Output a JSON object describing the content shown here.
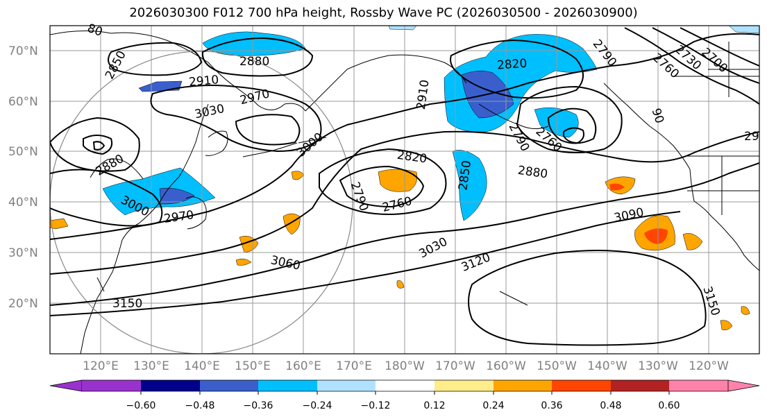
{
  "title": "2026030300 F012 700 hPa height, Rossby Wave PC (2026030500 - 2026030900)",
  "map": {
    "lat_labels": [
      "70°N",
      "60°N",
      "50°N",
      "40°N",
      "30°N",
      "20°N"
    ],
    "lon_labels": [
      "120°E",
      "130°E",
      "140°E",
      "150°E",
      "160°E",
      "170°E",
      "180°W",
      "170°W",
      "160°W",
      "150°W",
      "140°W",
      "130°W",
      "120°W"
    ],
    "contour_labels": [
      {
        "text": "2880",
        "color": "#000"
      },
      {
        "text": "2850",
        "color": "#000"
      },
      {
        "text": "2910",
        "color": "#000"
      },
      {
        "text": "2970",
        "color": "#000"
      },
      {
        "text": "3030",
        "color": "#000"
      },
      {
        "text": "3000",
        "color": "#000"
      },
      {
        "text": "2880",
        "color": "#000"
      },
      {
        "text": "3000",
        "color": "#000"
      },
      {
        "text": "2970",
        "color": "#000"
      },
      {
        "text": "2820",
        "color": "#000"
      },
      {
        "text": "2790",
        "color": "#000"
      },
      {
        "text": "2760",
        "color": "#000"
      },
      {
        "text": "2850",
        "color": "#000"
      },
      {
        "text": "3030",
        "color": "#000"
      },
      {
        "text": "3060",
        "color": "#000"
      },
      {
        "text": "3120",
        "color": "#000"
      },
      {
        "text": "3150",
        "color": "#000"
      },
      {
        "text": "2910",
        "color": "#000"
      },
      {
        "text": "2820",
        "color": "#000"
      },
      {
        "text": "2790",
        "color": "#000"
      },
      {
        "text": "2760",
        "color": "#000"
      },
      {
        "text": "2880",
        "color": "#000"
      },
      {
        "text": "3090",
        "color": "#000"
      },
      {
        "text": "2790",
        "color": "#000"
      },
      {
        "text": "2760",
        "color": "#000"
      },
      {
        "text": "2730",
        "color": "#000"
      },
      {
        "text": "2700",
        "color": "#000"
      },
      {
        "text": "3150",
        "color": "#000"
      },
      {
        "text": "29",
        "color": "#000"
      },
      {
        "text": "80",
        "color": "#000"
      },
      {
        "text": "90",
        "color": "#000"
      }
    ]
  },
  "colorbar": {
    "colors": [
      "#9932cc",
      "#00008b",
      "#3a5fcd",
      "#00bfff",
      "#b0e2ff",
      "#ffffff",
      "#ffec8b",
      "#ffa500",
      "#ff4500",
      "#b22222",
      "#ff82ab"
    ],
    "tick_labels": [
      "−0.60",
      "−0.48",
      "−0.36",
      "−0.24",
      "−0.12",
      "0.12",
      "0.24",
      "0.36",
      "0.48",
      "0.60"
    ]
  }
}
